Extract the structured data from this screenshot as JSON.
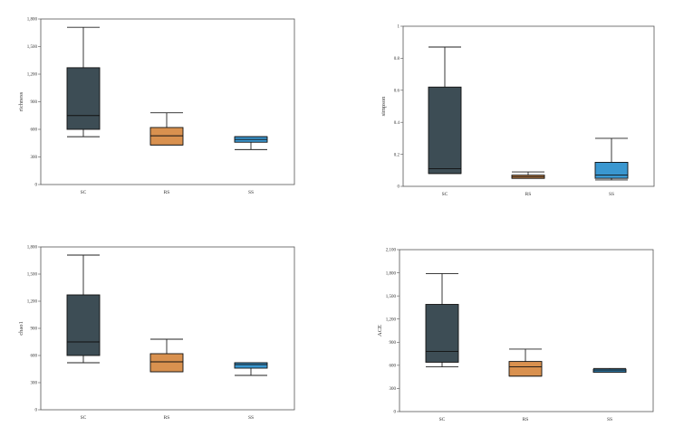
{
  "colors": {
    "SC": "#3d4d55",
    "RS": "#d9914f",
    "SS": "#3a97d0"
  },
  "chart_data": [
    {
      "type": "box",
      "ylabel": "richness",
      "categories": [
        "SC",
        "RS",
        "SS"
      ],
      "ylim": [
        0,
        1800
      ],
      "yticks": [
        0,
        300,
        600,
        900,
        1200,
        1500,
        1800
      ],
      "ytick_labels": [
        "0",
        "300",
        "600",
        "900",
        "1,200",
        "1,500",
        "1,800"
      ],
      "boxes": [
        {
          "name": "SC",
          "min": 520,
          "q1": 600,
          "median": 750,
          "q3": 1270,
          "max": 1710
        },
        {
          "name": "RS",
          "min": 430,
          "q1": 430,
          "median": 530,
          "q3": 620,
          "max": 780
        },
        {
          "name": "SS",
          "min": 380,
          "q1": 460,
          "median": 490,
          "q3": 520,
          "max": 520
        }
      ]
    },
    {
      "type": "box",
      "ylabel": "simpson",
      "categories": [
        "SC",
        "RS",
        "SS"
      ],
      "ylim": [
        0,
        1
      ],
      "yticks": [
        0,
        0.2,
        0.4,
        0.6,
        0.8,
        1
      ],
      "ytick_labels": [
        "0",
        "0.2",
        "0.4",
        "0.6",
        "0.8",
        "1"
      ],
      "boxes": [
        {
          "name": "SC",
          "min": 0.08,
          "q1": 0.08,
          "median": 0.11,
          "q3": 0.62,
          "max": 0.87
        },
        {
          "name": "RS",
          "min": 0.05,
          "q1": 0.05,
          "median": 0.06,
          "q3": 0.07,
          "max": 0.09
        },
        {
          "name": "SS",
          "min": 0.04,
          "q1": 0.05,
          "median": 0.07,
          "q3": 0.15,
          "max": 0.3
        }
      ]
    },
    {
      "type": "box",
      "ylabel": "chao1",
      "categories": [
        "SC",
        "RS",
        "SS"
      ],
      "ylim": [
        0,
        1800
      ],
      "yticks": [
        0,
        300,
        600,
        900,
        1200,
        1500,
        1800
      ],
      "ytick_labels": [
        "0",
        "300",
        "600",
        "900",
        "1,200",
        "1,500",
        "1,800"
      ],
      "boxes": [
        {
          "name": "SC",
          "min": 520,
          "q1": 600,
          "median": 750,
          "q3": 1270,
          "max": 1710
        },
        {
          "name": "RS",
          "min": 420,
          "q1": 420,
          "median": 530,
          "q3": 620,
          "max": 780
        },
        {
          "name": "SS",
          "min": 380,
          "q1": 460,
          "median": 500,
          "q3": 520,
          "max": 520
        }
      ]
    },
    {
      "type": "box",
      "ylabel": "ACE",
      "categories": [
        "SC",
        "RS",
        "SS"
      ],
      "ylim": [
        0,
        2100
      ],
      "yticks": [
        0,
        300,
        600,
        900,
        1200,
        1500,
        1800,
        2100
      ],
      "ytick_labels": [
        "0",
        "300",
        "600",
        "900",
        "1,200",
        "1,500",
        "1,800",
        "2,100"
      ],
      "boxes": [
        {
          "name": "SC",
          "min": 580,
          "q1": 640,
          "median": 780,
          "q3": 1390,
          "max": 1790
        },
        {
          "name": "RS",
          "min": 460,
          "q1": 460,
          "median": 580,
          "q3": 650,
          "max": 810
        },
        {
          "name": "SS",
          "min": 510,
          "q1": 510,
          "median": 530,
          "q3": 550,
          "max": 560
        }
      ]
    }
  ]
}
